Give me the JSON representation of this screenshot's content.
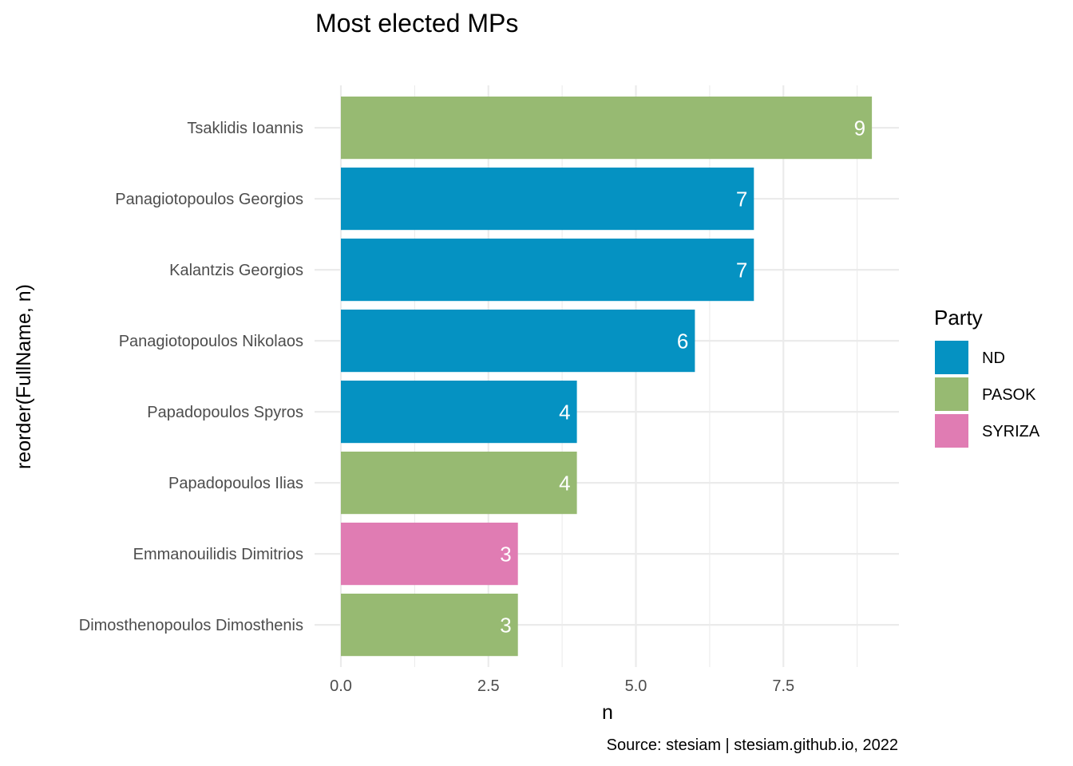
{
  "chart_data": {
    "type": "bar",
    "orientation": "horizontal",
    "title": "Most elected MPs",
    "xlabel": "n",
    "ylabel": "reorder(FullName, n)",
    "caption": "Source: stesiam | stesiam.github.io, 2022",
    "xlim": [
      0,
      9.45
    ],
    "xticks": [
      0,
      2.5,
      5,
      7.5
    ],
    "xtick_labels": [
      "0.0",
      "2.5",
      "5.0",
      "7.5"
    ],
    "grid": true,
    "legend": {
      "title": "Party",
      "position": "right",
      "entries": [
        {
          "name": "ND",
          "color": "#0592c2"
        },
        {
          "name": "PASOK",
          "color": "#97ba72"
        },
        {
          "name": "SYRIZA",
          "color": "#e07cb3"
        }
      ]
    },
    "bars": [
      {
        "name": "Tsaklidis Ioannis",
        "value": 9,
        "party": "PASOK"
      },
      {
        "name": "Panagiotopoulos Georgios",
        "value": 7,
        "party": "ND"
      },
      {
        "name": "Kalantzis Georgios",
        "value": 7,
        "party": "ND"
      },
      {
        "name": "Panagiotopoulos Nikolaos",
        "value": 6,
        "party": "ND"
      },
      {
        "name": "Papadopoulos Spyros",
        "value": 4,
        "party": "ND"
      },
      {
        "name": "Papadopoulos Ilias",
        "value": 4,
        "party": "PASOK"
      },
      {
        "name": "Emmanouilidis Dimitrios",
        "value": 3,
        "party": "SYRIZA"
      },
      {
        "name": "Dimosthenopoulos Dimosthenis",
        "value": 3,
        "party": "PASOK"
      }
    ]
  }
}
